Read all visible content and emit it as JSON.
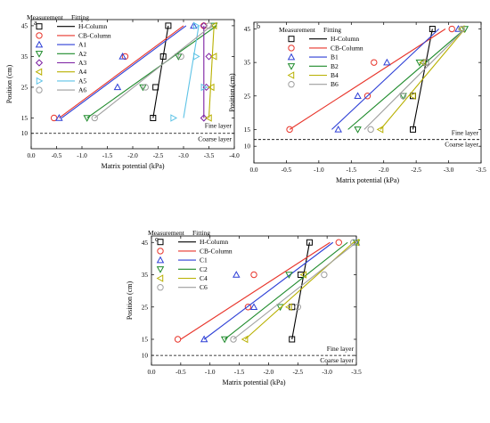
{
  "figure": {
    "panels_note": "",
    "xlabel": "Matrix potential (kPa)",
    "ylabel": "Position (cm)",
    "legend_headers": {
      "measurement": "Measurement",
      "fitting": "Fitting"
    },
    "layer_labels": {
      "fine": "Fine layer",
      "coarse": "Coarse layer"
    }
  },
  "chart_data": [
    {
      "type": "line",
      "panel": "a",
      "xlim": [
        0.0,
        -4.0
      ],
      "xticks": [
        0.0,
        -0.5,
        -1.0,
        -1.5,
        -2.0,
        -2.5,
        -3.0,
        -3.5,
        -4.0
      ],
      "xtick_labels": [
        "0.0",
        "-0.5",
        "-1.0",
        "-1.5",
        "-2.0",
        "-2.5",
        "-3.0",
        "-3.5",
        "-4.0"
      ],
      "ylim": [
        5,
        47
      ],
      "yticks": [
        10,
        15,
        25,
        35,
        45
      ],
      "boundary_y": 10,
      "xlabel": "Matrix potential (kPa)",
      "ylabel": "Position (cm)",
      "series": [
        {
          "name": "H-Column",
          "color": "#000000",
          "marker": "square",
          "points": [
            [
              -2.4,
              15
            ],
            [
              -2.45,
              25
            ],
            [
              -2.6,
              35
            ],
            [
              -2.7,
              45
            ]
          ],
          "fit": [
            [
              -2.4,
              15
            ],
            [
              -2.7,
              45
            ]
          ]
        },
        {
          "name": "CB-Column",
          "color": "#e8352b",
          "marker": "circle",
          "points": [
            [
              -0.45,
              15
            ],
            [
              -1.85,
              35
            ],
            [
              -3.4,
              45
            ]
          ],
          "fit": [
            [
              -0.55,
              15
            ],
            [
              -3.0,
              45
            ]
          ]
        },
        {
          "name": "A1",
          "color": "#2d3fd6",
          "marker": "triangle-up",
          "points": [
            [
              -0.55,
              15
            ],
            [
              -1.7,
              25
            ],
            [
              -1.8,
              35
            ],
            [
              -3.2,
              45
            ]
          ],
          "fit": [
            [
              -0.6,
              15
            ],
            [
              -3.05,
              45
            ]
          ]
        },
        {
          "name": "A2",
          "color": "#1d8a2a",
          "marker": "triangle-down",
          "points": [
            [
              -1.1,
              15
            ],
            [
              -2.2,
              25
            ],
            [
              -2.9,
              35
            ],
            [
              -3.6,
              45
            ]
          ],
          "fit": [
            [
              -1.1,
              15
            ],
            [
              -3.65,
              45
            ]
          ]
        },
        {
          "name": "A3",
          "color": "#7b1fa2",
          "marker": "diamond",
          "points": [
            [
              -3.4,
              15
            ],
            [
              -3.45,
              25
            ],
            [
              -3.5,
              35
            ],
            [
              -3.4,
              45
            ]
          ],
          "fit": [
            [
              -3.4,
              15
            ],
            [
              -3.4,
              45
            ]
          ]
        },
        {
          "name": "A4",
          "color": "#b8b000",
          "marker": "triangle-left",
          "points": [
            [
              -3.5,
              15
            ],
            [
              -3.55,
              25
            ],
            [
              -3.6,
              35
            ],
            [
              -3.6,
              45
            ]
          ],
          "fit": [
            [
              -3.5,
              15
            ],
            [
              -3.6,
              45
            ]
          ]
        },
        {
          "name": "A5",
          "color": "#5ec3e6",
          "marker": "triangle-right",
          "points": [
            [
              -2.8,
              15
            ],
            [
              -3.4,
              25
            ],
            [
              -3.25,
              35
            ],
            [
              -3.25,
              45
            ]
          ],
          "fit": [
            [
              -3.0,
              15
            ],
            [
              -3.3,
              45
            ]
          ]
        },
        {
          "name": "A6",
          "color": "#9e9e9e",
          "marker": "circle",
          "points": [
            [
              -1.25,
              15
            ],
            [
              -2.25,
              25
            ],
            [
              -2.95,
              35
            ],
            [
              -3.5,
              45
            ]
          ],
          "fit": [
            [
              -1.25,
              15
            ],
            [
              -3.55,
              45
            ]
          ]
        }
      ]
    },
    {
      "type": "line",
      "panel": "b",
      "xlim": [
        0.0,
        -3.5
      ],
      "xticks": [
        0.0,
        -0.5,
        -1.0,
        -1.5,
        -2.0,
        -2.5,
        -3.0,
        -3.5
      ],
      "xtick_labels": [
        "0.0",
        "-0.5",
        "-1.0",
        "-1.5",
        "-2.0",
        "-2.5",
        "-3.0",
        "-3.5"
      ],
      "ylim": [
        5,
        47
      ],
      "yticks": [
        10,
        15,
        25,
        35,
        45
      ],
      "boundary_y": 12,
      "xlabel": "Matrix potential (kPa)",
      "ylabel": "Position (cm)",
      "series": [
        {
          "name": "H-Column",
          "color": "#000000",
          "marker": "square",
          "points": [
            [
              -2.45,
              15
            ],
            [
              -2.45,
              25
            ],
            [
              -2.65,
              35
            ],
            [
              -2.75,
              45
            ]
          ],
          "fit": [
            [
              -2.45,
              15
            ],
            [
              -2.75,
              45
            ]
          ]
        },
        {
          "name": "CB-Column",
          "color": "#e8352b",
          "marker": "circle",
          "points": [
            [
              -0.55,
              15
            ],
            [
              -1.75,
              25
            ],
            [
              -1.85,
              35
            ],
            [
              -3.05,
              45
            ]
          ],
          "fit": [
            [
              -0.55,
              15
            ],
            [
              -2.95,
              45
            ]
          ]
        },
        {
          "name": "B1",
          "color": "#2d3fd6",
          "marker": "triangle-up",
          "points": [
            [
              -1.3,
              15
            ],
            [
              -1.6,
              25
            ],
            [
              -2.05,
              35
            ],
            [
              -3.15,
              45
            ]
          ],
          "fit": [
            [
              -1.2,
              15
            ],
            [
              -2.85,
              45
            ]
          ]
        },
        {
          "name": "B2",
          "color": "#1d8a2a",
          "marker": "triangle-down",
          "points": [
            [
              -1.6,
              15
            ],
            [
              -2.3,
              25
            ],
            [
              -2.55,
              35
            ],
            [
              -3.25,
              45
            ]
          ],
          "fit": [
            [
              -1.45,
              15
            ],
            [
              -3.25,
              45
            ]
          ]
        },
        {
          "name": "B4",
          "color": "#b8b000",
          "marker": "triangle-left",
          "points": [
            [
              -1.95,
              15
            ],
            [
              -2.45,
              25
            ],
            [
              -2.6,
              35
            ],
            [
              -3.2,
              45
            ]
          ],
          "fit": [
            [
              -1.95,
              15
            ],
            [
              -3.25,
              45
            ]
          ]
        },
        {
          "name": "B6",
          "color": "#9e9e9e",
          "marker": "circle",
          "points": [
            [
              -1.8,
              15
            ],
            [
              -2.3,
              25
            ],
            [
              -2.65,
              35
            ],
            [
              -3.2,
              45
            ]
          ],
          "fit": [
            [
              -1.7,
              15
            ],
            [
              -3.25,
              45
            ]
          ]
        }
      ]
    },
    {
      "type": "line",
      "panel": "c",
      "xlim": [
        0.0,
        -3.5
      ],
      "xticks": [
        0.0,
        -0.5,
        -1.0,
        -1.5,
        -2.0,
        -2.5,
        -3.0,
        -3.5
      ],
      "xtick_labels": [
        "0.0",
        "-0.5",
        "-1.0",
        "-1.5",
        "-2.0",
        "-2.5",
        "-3.0",
        "-3.5"
      ],
      "ylim": [
        7,
        47
      ],
      "yticks": [
        10,
        15,
        25,
        35,
        45
      ],
      "boundary_y": 10,
      "xlabel": "Matrix potential (kPa)",
      "ylabel": "Position (cm)",
      "series": [
        {
          "name": "H-Column",
          "color": "#000000",
          "marker": "square",
          "points": [
            [
              -2.4,
              15
            ],
            [
              -2.4,
              25
            ],
            [
              -2.55,
              35
            ],
            [
              -2.7,
              45
            ]
          ],
          "fit": [
            [
              -2.4,
              15
            ],
            [
              -2.7,
              45
            ]
          ]
        },
        {
          "name": "CB-Column",
          "color": "#e8352b",
          "marker": "circle",
          "points": [
            [
              -0.45,
              15
            ],
            [
              -1.65,
              25
            ],
            [
              -1.75,
              35
            ],
            [
              -3.2,
              45
            ]
          ],
          "fit": [
            [
              -0.5,
              15
            ],
            [
              -3.05,
              45
            ]
          ]
        },
        {
          "name": "C1",
          "color": "#2d3fd6",
          "marker": "triangle-up",
          "points": [
            [
              -0.9,
              15
            ],
            [
              -1.75,
              25
            ],
            [
              -1.45,
              35
            ],
            [
              -3.5,
              45
            ]
          ],
          "fit": [
            [
              -0.9,
              15
            ],
            [
              -3.1,
              45
            ]
          ]
        },
        {
          "name": "C2",
          "color": "#1d8a2a",
          "marker": "triangle-down",
          "points": [
            [
              -1.25,
              15
            ],
            [
              -2.2,
              25
            ],
            [
              -2.35,
              35
            ],
            [
              -3.5,
              45
            ]
          ],
          "fit": [
            [
              -1.25,
              15
            ],
            [
              -3.35,
              45
            ]
          ]
        },
        {
          "name": "C4",
          "color": "#b8b000",
          "marker": "triangle-left",
          "points": [
            [
              -1.6,
              15
            ],
            [
              -2.35,
              25
            ],
            [
              -2.6,
              35
            ],
            [
              -3.5,
              45
            ]
          ],
          "fit": [
            [
              -1.6,
              15
            ],
            [
              -3.45,
              45
            ]
          ]
        },
        {
          "name": "C6",
          "color": "#9e9e9e",
          "marker": "circle",
          "points": [
            [
              -1.4,
              15
            ],
            [
              -2.5,
              25
            ],
            [
              -2.95,
              35
            ],
            [
              -3.45,
              45
            ]
          ],
          "fit": [
            [
              -1.4,
              15
            ],
            [
              -3.5,
              45
            ]
          ]
        }
      ]
    }
  ]
}
